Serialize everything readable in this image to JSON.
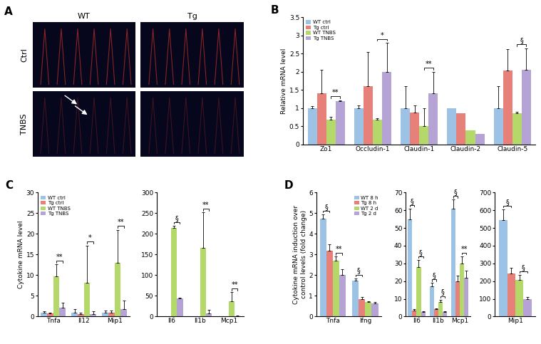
{
  "panel_a": {
    "label": "A",
    "columns": [
      "WT",
      "Tg"
    ],
    "rows": [
      "Ctrl",
      "TNBS"
    ]
  },
  "chart_data": [
    {
      "type": "bar",
      "title": "B",
      "y_label": "Relative mRNA level",
      "categories": [
        "Zo1",
        "Occludin-1",
        "Claudin-1",
        "Claudin-2",
        "Claudin-5"
      ],
      "series": [
        {
          "name": "WT ctrl",
          "color": "#9cc3e6",
          "values": [
            1.0,
            1.0,
            1.0,
            1.0,
            1.0
          ],
          "errors": [
            0.05,
            0.08,
            0.6,
            null,
            0.6
          ]
        },
        {
          "name": "Tg ctrl",
          "color": "#e8807a",
          "values": [
            1.4,
            1.6,
            0.88,
            0.85,
            2.03
          ],
          "errors": [
            0.65,
            0.95,
            0.2,
            null,
            0.6
          ]
        },
        {
          "name": "WT TNBS",
          "color": "#b5d86a",
          "values": [
            0.68,
            0.68,
            0.5,
            0.38,
            0.85
          ],
          "errors": [
            0.08,
            0.05,
            0.5,
            null,
            0.05
          ]
        },
        {
          "name": "Tg TNBS",
          "color": "#b5a3d6",
          "values": [
            1.2,
            2.0,
            1.4,
            0.3,
            2.05
          ],
          "errors": [
            0.02,
            0.8,
            0.6,
            null,
            0.6
          ]
        }
      ],
      "ylim": [
        0,
        3.5
      ],
      "yticks": [
        0,
        0.5,
        1,
        1.5,
        2,
        2.5,
        3,
        3.5
      ],
      "legend": "upper left",
      "annotations": [
        {
          "text": "**",
          "category": "Zo1",
          "between": [
            "WT TNBS",
            "Tg TNBS"
          ]
        },
        {
          "text": "*",
          "category": "Occludin-1",
          "between": [
            "WT TNBS",
            "Tg TNBS"
          ]
        },
        {
          "text": "**",
          "category": "Claudin-1",
          "between": [
            "WT TNBS",
            "Tg TNBS"
          ]
        },
        {
          "text": "§",
          "category": "Claudin-5",
          "between": [
            "WT TNBS",
            "Tg TNBS"
          ]
        }
      ]
    },
    {
      "type": "bar",
      "title": "C",
      "y_label": "Cytokine mRNA level",
      "categories": [
        "Tnfa",
        "Il12",
        "Mip1"
      ],
      "series": [
        {
          "name": "WT ctrl",
          "color": "#9cc3e6",
          "values": [
            1.0,
            1.0,
            1.0
          ],
          "errors": [
            0.3,
            0.8,
            0.5
          ]
        },
        {
          "name": "Tg ctrl",
          "color": "#e8807a",
          "values": [
            0.7,
            0.6,
            0.9
          ],
          "errors": [
            0.3,
            0.4,
            0.5
          ]
        },
        {
          "name": "WT TNBS",
          "color": "#b5d86a",
          "values": [
            9.8,
            8.2,
            13
          ],
          "errors": [
            2.8,
            9,
            8
          ]
        },
        {
          "name": "Tg TNBS",
          "color": "#b5a3d6",
          "values": [
            2.2,
            0.6,
            1.8
          ],
          "errors": [
            1.2,
            0.7,
            2
          ]
        }
      ],
      "ylim": [
        0,
        30
      ],
      "yticks": [
        0,
        5,
        10,
        15,
        20,
        25,
        30
      ],
      "legend": "upper left",
      "annotations": [
        {
          "text": "**",
          "category": "Tnfa",
          "between": [
            "WT TNBS",
            "Tg TNBS"
          ]
        },
        {
          "text": "*",
          "category": "Il12",
          "between": [
            "WT TNBS",
            "Tg TNBS"
          ]
        },
        {
          "text": "**",
          "category": "Mip1",
          "between": [
            "WT TNBS",
            "Tg TNBS"
          ]
        }
      ]
    },
    {
      "type": "bar",
      "categories": [
        "Il6",
        "Il1b",
        "Mcp1"
      ],
      "series": [
        {
          "name": "WT ctrl",
          "color": "#9cc3e6",
          "values": [
            1,
            1,
            1
          ],
          "errors": [
            null,
            null,
            null
          ]
        },
        {
          "name": "Tg ctrl",
          "color": "#e8807a",
          "values": [
            1,
            1,
            1
          ],
          "errors": [
            null,
            null,
            null
          ]
        },
        {
          "name": "WT TNBS",
          "color": "#b5d86a",
          "values": [
            215,
            167,
            37
          ],
          "errors": [
            5,
            85,
            22
          ]
        },
        {
          "name": "Tg TNBS",
          "color": "#b5a3d6",
          "values": [
            43,
            8,
            1
          ],
          "errors": [
            2,
            8,
            1
          ]
        }
      ],
      "ylim": [
        0,
        300
      ],
      "yticks": [
        0,
        50,
        100,
        150,
        200,
        250,
        300
      ],
      "annotations": [
        {
          "text": "§",
          "category": "Il6",
          "between": [
            "WT TNBS",
            "Tg TNBS"
          ]
        },
        {
          "text": "**",
          "category": "Il1b",
          "between": [
            "WT TNBS",
            "Tg TNBS"
          ]
        },
        {
          "text": "**",
          "category": "Mcp1",
          "between": [
            "WT TNBS",
            "Tg TNBS"
          ]
        }
      ]
    },
    {
      "type": "bar",
      "title": "D",
      "y_label": "Cytokine mRNA induction over control levels (fold change)",
      "categories": [
        "Tnfa",
        "Ifng"
      ],
      "series": [
        {
          "name": "WT 8 h",
          "color": "#9cc3e6",
          "values": [
            4.75,
            1.75
          ],
          "errors": [
            0.2,
            0.1
          ]
        },
        {
          "name": "Tg 8 h",
          "color": "#e8807a",
          "values": [
            3.2,
            0.85
          ],
          "errors": [
            0.3,
            0.1
          ]
        },
        {
          "name": "WT 2 d",
          "color": "#b5d86a",
          "values": [
            2.7,
            0.7
          ],
          "errors": [
            0.2,
            0.05
          ]
        },
        {
          "name": "Tg 2 d",
          "color": "#b5a3d6",
          "values": [
            2.0,
            0.65
          ],
          "errors": [
            0.3,
            0.05
          ]
        }
      ],
      "ylim": [
        0,
        6
      ],
      "yticks": [
        0,
        1,
        2,
        3,
        4,
        5,
        6
      ],
      "legend": "upper right",
      "annotations": [
        {
          "text": "§",
          "category": "Tnfa",
          "between": [
            "WT 8 h",
            "Tg 8 h"
          ]
        },
        {
          "text": "**",
          "category": "Tnfa",
          "between": [
            "WT 2 d",
            "Tg 2 d"
          ]
        },
        {
          "text": "§",
          "category": "Ifng",
          "between": [
            "WT 8 h",
            "Tg 8 h"
          ]
        }
      ]
    },
    {
      "type": "bar",
      "categories": [
        "Il6",
        "Il1b",
        "Mcp1"
      ],
      "series": [
        {
          "name": "WT 8 h",
          "color": "#9cc3e6",
          "values": [
            55,
            17,
            61
          ],
          "errors": [
            6,
            2,
            5
          ]
        },
        {
          "name": "Tg 8 h",
          "color": "#e8807a",
          "values": [
            3.5,
            4,
            20
          ],
          "errors": [
            0.5,
            0.5,
            3
          ]
        },
        {
          "name": "WT 2 d",
          "color": "#b5d86a",
          "values": [
            28,
            8,
            30
          ],
          "errors": [
            4,
            1.5,
            4
          ]
        },
        {
          "name": "Tg 2 d",
          "color": "#b5a3d6",
          "values": [
            2.5,
            2.5,
            22
          ],
          "errors": [
            0.3,
            0.3,
            4
          ]
        }
      ],
      "ylim": [
        0,
        70
      ],
      "yticks": [
        0,
        10,
        20,
        30,
        40,
        50,
        60,
        70
      ],
      "annotations": [
        {
          "text": "§",
          "category": "Il6",
          "between": [
            "WT 8 h",
            "Tg 8 h"
          ]
        },
        {
          "text": "§",
          "category": "Il6",
          "between": [
            "WT 2 d",
            "Tg 2 d"
          ]
        },
        {
          "text": "§",
          "category": "Il1b",
          "between": [
            "WT 8 h",
            "Tg 8 h"
          ]
        },
        {
          "text": "§",
          "category": "Il1b",
          "between": [
            "WT 2 d",
            "Tg 2 d"
          ]
        },
        {
          "text": "§",
          "category": "Mcp1",
          "between": [
            "WT 8 h",
            "Tg 8 h"
          ]
        },
        {
          "text": "**",
          "category": "Mcp1",
          "between": [
            "WT 2 d",
            "Tg 2 d"
          ]
        }
      ]
    },
    {
      "type": "bar",
      "categories": [
        "Mip1"
      ],
      "series": [
        {
          "name": "WT 8 h",
          "color": "#9cc3e6",
          "values": [
            545
          ],
          "errors": [
            60
          ]
        },
        {
          "name": "Tg 8 h",
          "color": "#e8807a",
          "values": [
            245
          ],
          "errors": [
            30
          ]
        },
        {
          "name": "WT 2 d",
          "color": "#b5d86a",
          "values": [
            205
          ],
          "errors": [
            30
          ]
        },
        {
          "name": "Tg 2 d",
          "color": "#b5a3d6",
          "values": [
            100
          ],
          "errors": [
            10
          ]
        }
      ],
      "ylim": [
        0,
        700
      ],
      "yticks": [
        0,
        100,
        200,
        300,
        400,
        500,
        600,
        700
      ],
      "annotations": [
        {
          "text": "§",
          "category": "Mip1",
          "between": [
            "WT 8 h",
            "Tg 8 h"
          ]
        },
        {
          "text": "§",
          "category": "Mip1",
          "between": [
            "WT 2 d",
            "Tg 2 d"
          ]
        }
      ]
    }
  ]
}
